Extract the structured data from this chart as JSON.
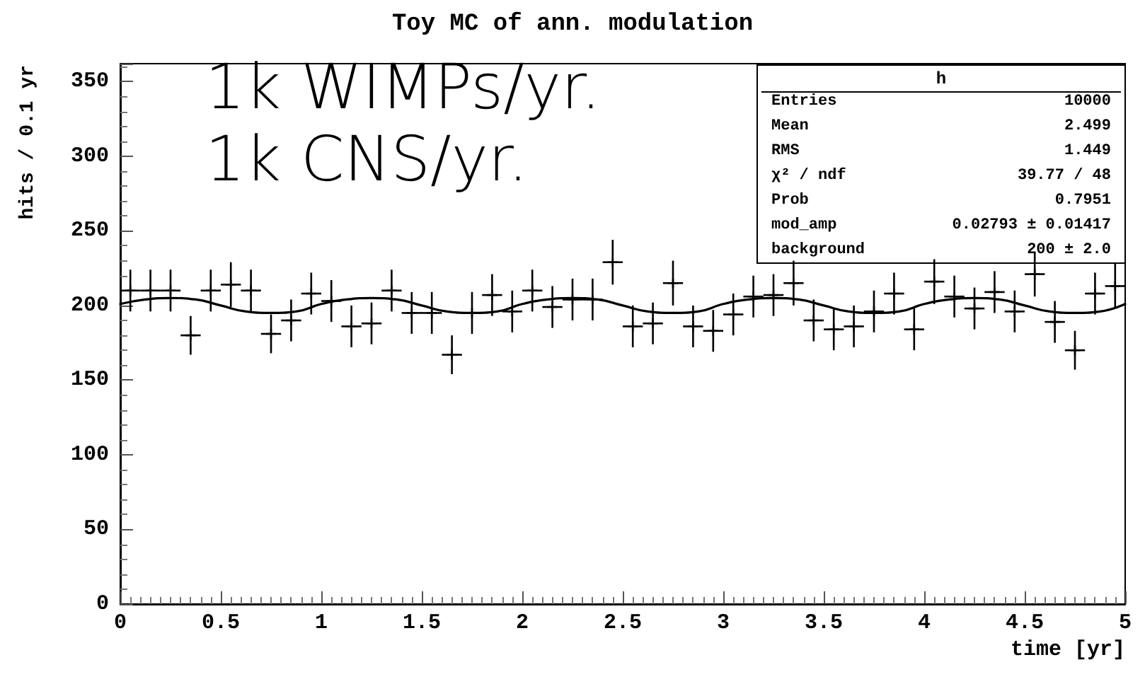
{
  "chart_data": {
    "type": "scatter",
    "title": "Toy MC of ann. modulation",
    "xlabel": "time [yr]",
    "ylabel": "hits / 0.1 yr",
    "annotations": [
      "1k WIMPs/yr.",
      "1k CNS/yr.",
      "h",
      "Entries",
      "10000",
      "Mean",
      "2.499",
      "RMS",
      "1.449",
      "χ² / ndf",
      "39.77 / 48",
      "Prob",
      "0.7951",
      "mod_amp",
      "0.02793 ± 0.01417",
      "background",
      "200 ± 2.0"
    ],
    "xlim": [
      0,
      5
    ],
    "xticks": [
      0,
      0.5,
      1,
      1.5,
      2,
      2.5,
      3,
      3.5,
      4,
      4.5,
      5
    ],
    "ylim": [
      0,
      362
    ],
    "yticks": [
      0,
      50,
      100,
      150,
      200,
      250,
      300,
      350
    ],
    "grid": false,
    "series": [
      {
        "type": "scatter",
        "marker": "cross",
        "color": "#000000",
        "x": [
          0.05,
          0.15,
          0.25,
          0.35,
          0.45,
          0.55,
          0.65,
          0.75,
          0.85,
          0.95,
          1.05,
          1.15,
          1.25,
          1.35,
          1.45,
          1.55,
          1.65,
          1.75,
          1.85,
          1.95,
          2.05,
          2.15,
          2.25,
          2.35,
          2.45,
          2.55,
          2.65,
          2.75,
          2.85,
          2.95,
          3.05,
          3.15,
          3.25,
          3.35,
          3.45,
          3.55,
          3.65,
          3.75,
          3.85,
          3.95,
          4.05,
          4.15,
          4.25,
          4.35,
          4.45,
          4.55,
          4.65,
          4.75,
          4.85,
          4.95
        ],
        "values": [
          210,
          210,
          210,
          180,
          210,
          214,
          210,
          181,
          190,
          208,
          203,
          186,
          188,
          210,
          195,
          195,
          167,
          195,
          207,
          196,
          210,
          199,
          204,
          204,
          229,
          186,
          188,
          215,
          186,
          183,
          194,
          206,
          207,
          215,
          190,
          184,
          186,
          196,
          208,
          184,
          216,
          206,
          198,
          209,
          196,
          221,
          189,
          170,
          208,
          213
        ],
        "errors": [
          14,
          14,
          14,
          13,
          14,
          15,
          14,
          13,
          14,
          14,
          14,
          14,
          14,
          14,
          14,
          14,
          13,
          14,
          14,
          14,
          14,
          14,
          14,
          14,
          15,
          14,
          14,
          15,
          14,
          14,
          14,
          14,
          14,
          15,
          14,
          14,
          14,
          14,
          14,
          14,
          15,
          14,
          14,
          14,
          14,
          15,
          14,
          13,
          14,
          15
        ],
        "xerrors": [
          0.05,
          0.05,
          0.05,
          0.05,
          0.05,
          0.05,
          0.05,
          0.05,
          0.05,
          0.05,
          0.05,
          0.05,
          0.05,
          0.05,
          0.05,
          0.05,
          0.05,
          0.05,
          0.05,
          0.05,
          0.05,
          0.05,
          0.05,
          0.05,
          0.05,
          0.05,
          0.05,
          0.05,
          0.05,
          0.05,
          0.05,
          0.05,
          0.05,
          0.05,
          0.05,
          0.05,
          0.05,
          0.05,
          0.05,
          0.05,
          0.05,
          0.05,
          0.05,
          0.05,
          0.05,
          0.05,
          0.05,
          0.05,
          0.05,
          0.05
        ]
      },
      {
        "type": "line",
        "color": "#000000",
        "x": [
          0,
          0.125,
          0.25,
          0.375,
          0.5,
          0.625,
          0.75,
          0.875,
          1,
          1.125,
          1.25,
          1.375,
          1.5,
          1.625,
          1.75,
          1.875,
          2,
          2.125,
          2.25,
          2.375,
          2.5,
          2.625,
          2.75,
          2.875,
          3,
          3.125,
          3.25,
          3.375,
          3.5,
          3.625,
          3.75,
          3.875,
          4,
          4.125,
          4.25,
          4.375,
          4.5,
          4.625,
          4.75,
          4.875,
          5
        ],
        "values": [
          201,
          204,
          205,
          204,
          200,
          196,
          195,
          196,
          201,
          204,
          205,
          204,
          200,
          196,
          195,
          196,
          201,
          204,
          205,
          204,
          200,
          196,
          195,
          196,
          201,
          204,
          205,
          204,
          200,
          196,
          195,
          196,
          201,
          204,
          205,
          204,
          200,
          196,
          195,
          196,
          201
        ]
      }
    ]
  }
}
